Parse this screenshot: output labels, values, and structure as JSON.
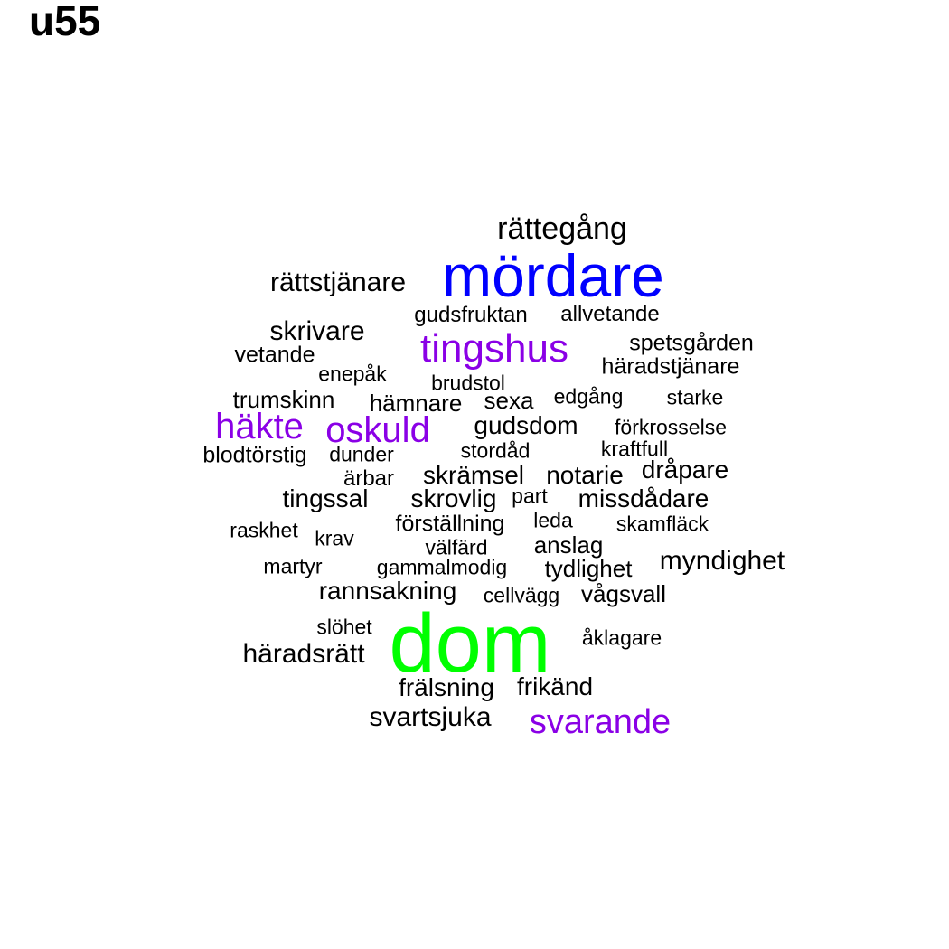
{
  "title": "u55",
  "colors": {
    "tier1": "#000000",
    "tier2": "#8a00e6",
    "tier3": "#0000ff",
    "tier4": "#00ff00"
  },
  "words": [
    {
      "text": "dom"
    },
    {
      "text": "mördare"
    },
    {
      "text": "tingshus"
    },
    {
      "text": "häkte"
    },
    {
      "text": "oskuld"
    },
    {
      "text": "svarande"
    },
    {
      "text": "rättegång"
    },
    {
      "text": "rättstjänare"
    },
    {
      "text": "skrivare"
    },
    {
      "text": "myndighet"
    },
    {
      "text": "gudsdom"
    },
    {
      "text": "skrämsel"
    },
    {
      "text": "tingssal"
    },
    {
      "text": "skrovlig"
    },
    {
      "text": "notarie"
    },
    {
      "text": "dråpare"
    },
    {
      "text": "missdådare"
    },
    {
      "text": "rannsakning"
    },
    {
      "text": "häradsrätt"
    },
    {
      "text": "svartsjuka"
    },
    {
      "text": "frikänd"
    },
    {
      "text": "frälsning"
    },
    {
      "text": "spetsgården"
    },
    {
      "text": "häradstjänare"
    },
    {
      "text": "trumskinn"
    },
    {
      "text": "hämnare"
    },
    {
      "text": "sexa"
    },
    {
      "text": "förställning"
    },
    {
      "text": "anslag"
    },
    {
      "text": "tydlighet"
    },
    {
      "text": "vågsvall"
    },
    {
      "text": "blodtörstig"
    },
    {
      "text": "vetande"
    },
    {
      "text": "gudsfruktan"
    },
    {
      "text": "allvetande"
    },
    {
      "text": "edgång"
    },
    {
      "text": "starke"
    },
    {
      "text": "förkrosselse"
    },
    {
      "text": "kraftfull"
    },
    {
      "text": "stordåd"
    },
    {
      "text": "dunder"
    },
    {
      "text": "ärbar"
    },
    {
      "text": "part"
    },
    {
      "text": "leda"
    },
    {
      "text": "skamfläck"
    },
    {
      "text": "raskhet"
    },
    {
      "text": "krav"
    },
    {
      "text": "välfärd"
    },
    {
      "text": "martyr"
    },
    {
      "text": "gammalmodig"
    },
    {
      "text": "cellvägg"
    },
    {
      "text": "slöhet"
    },
    {
      "text": "åklagare"
    },
    {
      "text": "enepåk"
    },
    {
      "text": "brudstol"
    }
  ]
}
